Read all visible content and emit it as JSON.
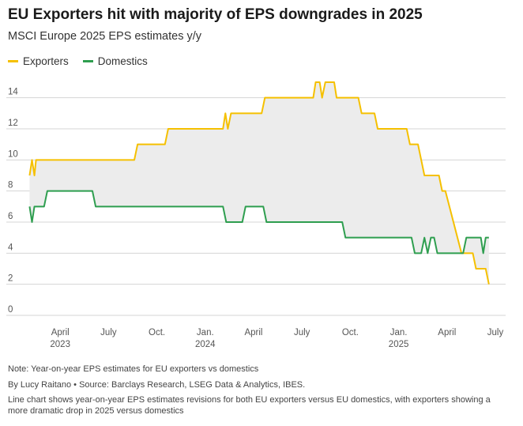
{
  "header": {
    "title": "EU Exporters hit with majority of EPS downgrades in 2025",
    "subtitle": "MSCI Europe 2025 EPS estimates y/y"
  },
  "legend": [
    {
      "label": "Exporters",
      "color": "#f5c000"
    },
    {
      "label": "Domestics",
      "color": "#2e9e4f"
    }
  ],
  "footer": {
    "note": "Note: Year-on-year EPS estimates for EU exporters vs domestics",
    "byline": "By Lucy Raitano • Source: Barclays Research, LSEG Data & Analytics, IBES.",
    "description": "Line chart shows year-on-year EPS estimates revisions for both EU exporters versus EU domestics, with exporters showing a more dramatic drop in 2025 versus domestics"
  },
  "chart_data": {
    "type": "line",
    "title": "EU Exporters hit with majority of EPS downgrades in 2025",
    "subtitle": "MSCI Europe 2025 EPS estimates y/y",
    "xlabel": "",
    "ylabel": "",
    "ylim": [
      0,
      15
    ],
    "yticks": [
      0,
      2,
      4,
      6,
      8,
      10,
      12,
      14
    ],
    "xlim": [
      0,
      29.6
    ],
    "x_unit": "months since 2023-01-01",
    "xticks": [
      {
        "x": 3,
        "label": "April",
        "sublabel": "2023"
      },
      {
        "x": 6,
        "label": "July",
        "sublabel": ""
      },
      {
        "x": 9,
        "label": "Oct.",
        "sublabel": ""
      },
      {
        "x": 12,
        "label": "Jan.",
        "sublabel": "2024"
      },
      {
        "x": 15,
        "label": "April",
        "sublabel": ""
      },
      {
        "x": 18,
        "label": "July",
        "sublabel": ""
      },
      {
        "x": 21,
        "label": "Oct.",
        "sublabel": ""
      },
      {
        "x": 24,
        "label": "Jan.",
        "sublabel": "2025"
      },
      {
        "x": 27,
        "label": "April",
        "sublabel": ""
      },
      {
        "x": 30,
        "label": "July",
        "sublabel": ""
      }
    ],
    "gridlines": true,
    "shaded_area_between_series": true,
    "series": [
      {
        "name": "Exporters",
        "color": "#f5c000",
        "points": [
          [
            1.1,
            9
          ],
          [
            1.25,
            10
          ],
          [
            1.4,
            9
          ],
          [
            1.5,
            10
          ],
          [
            7.6,
            10
          ],
          [
            7.8,
            11
          ],
          [
            9.5,
            11
          ],
          [
            9.7,
            12
          ],
          [
            13.1,
            12
          ],
          [
            13.25,
            13
          ],
          [
            13.4,
            12
          ],
          [
            13.6,
            13
          ],
          [
            15.5,
            13
          ],
          [
            15.7,
            14
          ],
          [
            18.7,
            14
          ],
          [
            18.85,
            15
          ],
          [
            19.1,
            15
          ],
          [
            19.25,
            14
          ],
          [
            19.45,
            15
          ],
          [
            20.0,
            15
          ],
          [
            20.15,
            14
          ],
          [
            21.5,
            14
          ],
          [
            21.7,
            13
          ],
          [
            22.5,
            13
          ],
          [
            22.7,
            12
          ],
          [
            24.5,
            12
          ],
          [
            24.7,
            11
          ],
          [
            25.2,
            11
          ],
          [
            25.4,
            10
          ],
          [
            25.6,
            9
          ],
          [
            26.5,
            9
          ],
          [
            26.7,
            8
          ],
          [
            26.9,
            8
          ],
          [
            27.9,
            4
          ],
          [
            28.6,
            4
          ],
          [
            28.8,
            3
          ],
          [
            29.4,
            3
          ],
          [
            29.6,
            2
          ]
        ]
      },
      {
        "name": "Domestics",
        "color": "#2e9e4f",
        "points": [
          [
            1.1,
            7
          ],
          [
            1.25,
            6
          ],
          [
            1.4,
            7
          ],
          [
            2.0,
            7
          ],
          [
            2.2,
            8
          ],
          [
            5.0,
            8
          ],
          [
            5.2,
            7
          ],
          [
            13.1,
            7
          ],
          [
            13.3,
            6
          ],
          [
            14.3,
            6
          ],
          [
            14.5,
            7
          ],
          [
            15.6,
            7
          ],
          [
            15.8,
            6
          ],
          [
            20.5,
            6
          ],
          [
            20.7,
            5
          ],
          [
            24.8,
            5
          ],
          [
            25.0,
            4
          ],
          [
            25.4,
            4
          ],
          [
            25.6,
            5
          ],
          [
            25.8,
            4
          ],
          [
            26.0,
            5
          ],
          [
            26.2,
            5
          ],
          [
            26.4,
            4
          ],
          [
            28.0,
            4
          ],
          [
            28.2,
            5
          ],
          [
            29.1,
            5
          ],
          [
            29.25,
            4
          ],
          [
            29.4,
            5
          ],
          [
            29.6,
            5
          ]
        ]
      }
    ]
  }
}
